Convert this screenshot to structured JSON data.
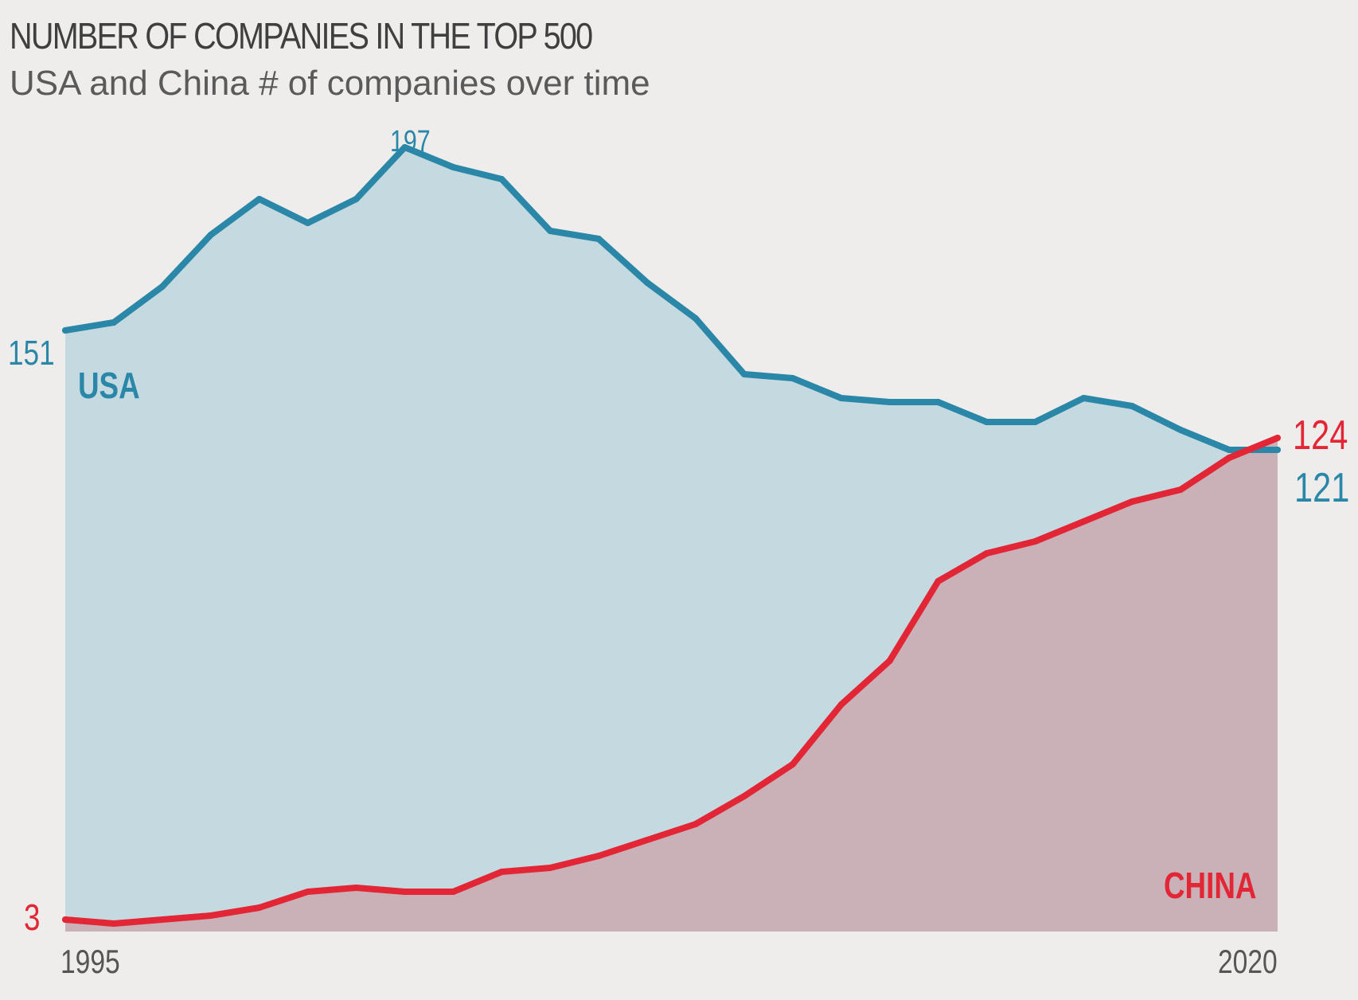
{
  "title": "NUMBER OF COMPANIES IN THE TOP 500",
  "subtitle": "USA and China # of companies over time",
  "colors": {
    "usa_line": "#2a87a8",
    "usa_fill": "#c5d9e1",
    "china_line": "#e32636",
    "china_fill": "#c9b1b7",
    "background": "#efedeb"
  },
  "chart_data": {
    "type": "area",
    "x": [
      1995,
      1996,
      1997,
      1998,
      1999,
      2000,
      2001,
      2002,
      2003,
      2004,
      2005,
      2006,
      2007,
      2008,
      2009,
      2010,
      2011,
      2012,
      2013,
      2014,
      2015,
      2016,
      2017,
      2018,
      2019,
      2020
    ],
    "series": [
      {
        "name": "USA",
        "values": [
          151,
          153,
          162,
          175,
          184,
          178,
          184,
          197,
          192,
          189,
          176,
          174,
          163,
          154,
          140,
          139,
          134,
          133,
          133,
          128,
          128,
          134,
          132,
          126,
          121,
          121
        ]
      },
      {
        "name": "CHINA",
        "values": [
          3,
          2,
          3,
          4,
          6,
          10,
          11,
          10,
          10,
          15,
          16,
          19,
          23,
          27,
          34,
          42,
          57,
          68,
          88,
          95,
          98,
          103,
          108,
          111,
          119,
          124
        ]
      }
    ],
    "xlabel": "",
    "ylabel": "",
    "ylim": [
      0,
      200
    ],
    "grid": false,
    "tick_labels": {
      "x_start": "1995",
      "x_end": "2020"
    },
    "annotations": {
      "usa_start": "151",
      "usa_peak": "197",
      "usa_end": "121",
      "china_start": "3",
      "china_end": "124",
      "usa_label": "USA",
      "china_label": "CHINA"
    }
  }
}
